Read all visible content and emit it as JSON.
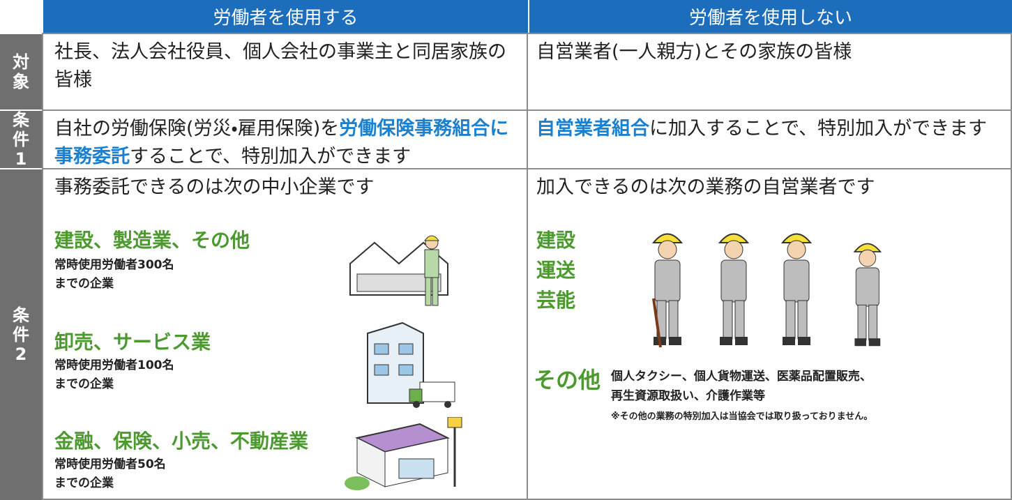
{
  "header": {
    "columns": [
      "労働者を使用する",
      "労働者を使用しない"
    ]
  },
  "rows": [
    {
      "label": "対象",
      "left": [
        {
          "text": "社長、法人会社役員、個人会社の事業主と同居家族の皆様",
          "highlight": false
        }
      ],
      "right": [
        {
          "text": "自営業者(一人親方)とその家族の皆様",
          "highlight": false
        }
      ]
    },
    {
      "label": "条件1",
      "left": [
        {
          "text": "自社の労働保険(労災・雇用保険)を",
          "highlight": false
        },
        {
          "text": "労働保険事務組合に事務委託",
          "highlight": true
        },
        {
          "text": "することで、特別加入ができます",
          "highlight": false
        }
      ],
      "right": [
        {
          "text": "自営業者組合",
          "highlight": true
        },
        {
          "text": "に加入することで、特別加入ができます",
          "highlight": false
        }
      ]
    },
    {
      "label": "条件2",
      "left": {
        "intro": "事務委託できるのは次の中小企業です",
        "groups": [
          {
            "name": "建設、製造業、その他",
            "lines": [
              "常時使用労働者300名",
              "までの企業"
            ]
          },
          {
            "name": "卸売、サービス業",
            "lines": [
              "常時使用労働者100名",
              "までの企業"
            ]
          },
          {
            "name": "金融、保険、小売、不動産業",
            "lines": [
              "常時使用労働者50名",
              "までの企業"
            ]
          }
        ]
      },
      "right": {
        "intro": "加入できるのは次の業務の自営業者です",
        "categories": [
          "建設",
          "運送",
          "芸能"
        ],
        "other": {
          "name": "その他",
          "lines": [
            "個人タクシー、個人貨物運送、医薬品配置販売、",
            "再生資源取扱い、介護作業等"
          ],
          "note": "※その他の業務の特別加入は当協会では取り扱っておりません。"
        }
      }
    }
  ]
}
